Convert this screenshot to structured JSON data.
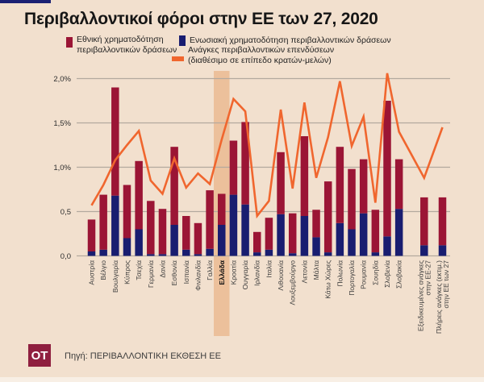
{
  "page": {
    "background_color": "#F2E0CE",
    "accent_bar_color": "#1B2173",
    "bottom_strip_color": "#F8EFE5"
  },
  "title": "Περιβαλλοντικοί φόροι στην ΕΕ των 27, 2020",
  "legend": {
    "national": {
      "label_line1": "Εθνική χρηματοδότηση",
      "label_line2": "περιβαλλοντικών δράσεων",
      "color": "#9B1535"
    },
    "eu": {
      "label": "Ενωσιακή χρηματοδότηση περιβαλλοντικών δράσεων",
      "color": "#191D70"
    },
    "needs": {
      "label_line1": "Ανάγκες περιβαλλοντικών επενδύσεων",
      "label_line2": "(διαθέσιμο σε επίπεδο κρατών-μελών)",
      "color": "#F0662E"
    }
  },
  "chart_data": {
    "type": "bar",
    "subtype": "stacked bars with overlay line, values in % ",
    "title": "Περιβαλλοντικοί φόροι στην ΕΕ των 27, 2020",
    "grid": true,
    "legend_position": "top",
    "ylim": [
      0,
      2.1
    ],
    "y_ticks": [
      {
        "label": "2,0%",
        "value": 2.0
      },
      {
        "label": "1,5%",
        "value": 1.5
      },
      {
        "label": "1,0%",
        "value": 1.0
      },
      {
        "label": "0,5",
        "value": 0.5
      },
      {
        "label": "0,0",
        "value": 0.0
      }
    ],
    "highlight_category": "Ελλάδα",
    "highlight_band_color": "#ECC09B",
    "categories": [
      "Αυστρία",
      "Βέλγιο",
      "Βουλγαρία",
      "Κύπρος",
      "Τσεχία",
      "Γερμανία",
      "Δανία",
      "Εσθονία",
      "Ισπανία",
      "Φινλανδία",
      "Γαλλία",
      "Ελλάδα",
      "Κροατία",
      "Ουγγαρία",
      "Ιρλανδία",
      "Ιταλία",
      "Λιθουανία",
      "Λουξεμβούργο",
      "Λετονία",
      "Μάλτα",
      "Κάτω Χώρες",
      "Πολωνία",
      "Πορτογαλία",
      "Ρουμανία",
      "Σουηδία",
      "Σλοβενία",
      "Σλοβακία",
      "Εξειδικευμένες ανάγκες\nστην ΕΕ-27",
      "Πλήρεις ανάγκες (εκτιμ.)\nστην ΕΕ των 27"
    ],
    "series": [
      {
        "name": "Εθνική χρηματοδότηση περιβαλλοντικών δράσεων",
        "type": "bar",
        "color": "#9B1535",
        "values": [
          0.36,
          0.62,
          1.22,
          0.6,
          0.77,
          0.6,
          0.51,
          0.88,
          0.38,
          0.35,
          0.66,
          0.35,
          0.61,
          0.93,
          0.23,
          0.36,
          0.7,
          0.45,
          0.9,
          0.31,
          0.8,
          0.86,
          0.68,
          0.61,
          0.48,
          1.53,
          0.56,
          0.54,
          0.54
        ]
      },
      {
        "name": "Ενωσιακή χρηματοδότηση περιβαλλοντικών δράσεων",
        "type": "bar",
        "color": "#191D70",
        "values": [
          0.05,
          0.07,
          0.68,
          0.2,
          0.3,
          0.02,
          0.02,
          0.35,
          0.07,
          0.02,
          0.08,
          0.35,
          0.69,
          0.58,
          0.04,
          0.07,
          0.47,
          0.03,
          0.45,
          0.21,
          0.04,
          0.37,
          0.3,
          0.48,
          0.04,
          0.22,
          0.53,
          0.12,
          0.12
        ]
      },
      {
        "name": "Ανάγκες περιβαλλοντικών επενδύσεων (διαθέσιμο σε επίπεδο κρατών-μελών)",
        "type": "line",
        "color": "#F0662E",
        "values": [
          0.57,
          0.8,
          1.08,
          1.25,
          1.41,
          0.85,
          0.7,
          1.1,
          0.77,
          0.93,
          0.81,
          1.31,
          1.77,
          1.63,
          0.45,
          0.62,
          1.65,
          0.76,
          1.73,
          0.88,
          1.34,
          1.97,
          1.24,
          1.57,
          0.6,
          2.06,
          1.4,
          0.88,
          1.45
        ]
      }
    ]
  },
  "source": {
    "logo_text": "OT",
    "logo_color": "#8F1F3F",
    "text": "Πηγή: ΠΕΡΙΒΑΛΛΟΝΤΙΚΗ ΕΚΘΕΣΗ ΕΕ"
  }
}
